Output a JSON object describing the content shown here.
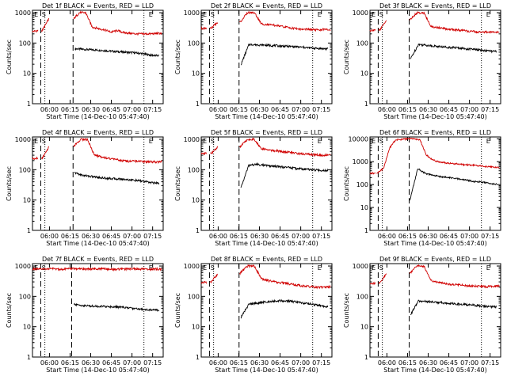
{
  "colors": {
    "events": "#000000",
    "lld": "#d00000",
    "axis": "#000000",
    "marker": "#000000"
  },
  "shared": {
    "ylabel": "Counts/sec",
    "xlabel": "Start Time (14-Dec-10 05:47:40)",
    "x_ticks": [
      "06:00",
      "06:15",
      "06:30",
      "06:45",
      "07:00",
      "07:15"
    ],
    "x_tick_minutes": [
      12.33,
      27.33,
      42.33,
      57.33,
      72.33,
      87.33
    ],
    "y_ticks": [
      "1",
      "10",
      "100",
      "1000"
    ],
    "y_ticks_big": [
      "1",
      "10",
      "100",
      "1000",
      "10000"
    ]
  },
  "chart_data": [
    {
      "type": "line",
      "title": "Det 1f BLACK = Events, RED = LLD",
      "xlim": [
        0,
        95
      ],
      "ylim": [
        1,
        1200
      ],
      "yscale": "log",
      "marker_letters": [
        "E",
        "S",
        "E"
      ],
      "markers": {
        "dashed": [
          6.0,
          29.5
        ],
        "dotted": [
          9.0,
          81.0
        ]
      },
      "series": [
        {
          "name": "BLACK = Events",
          "segments": [
            [
              31.0,
              92.0
            ]
          ],
          "y": [
            65,
            62,
            60,
            58,
            55,
            52,
            50,
            48,
            45,
            40,
            38
          ]
        },
        {
          "name": "RED = LLD",
          "segments": [
            [
              0,
              4.0
            ],
            [
              6.5,
              12.0
            ],
            [
              29.8,
              94.0
            ]
          ],
          "y": [
            240,
            260,
            600,
            1000,
            1000,
            340,
            300,
            270,
            230,
            260,
            220,
            210,
            200,
            200,
            200,
            205,
            210
          ]
        }
      ]
    },
    {
      "type": "line",
      "title": "Det 2f BLACK = Events, RED = LLD",
      "xlim": [
        0,
        95
      ],
      "ylim": [
        1,
        1200
      ],
      "yscale": "log",
      "marker_letters": [
        "E",
        "S",
        "E"
      ],
      "markers": {
        "dashed": [
          6.0,
          27.5
        ],
        "dotted": [
          9.0,
          81.0
        ]
      },
      "series": [
        {
          "name": "BLACK = Events",
          "segments": [
            [
              29.0,
              92.0
            ]
          ],
          "y": [
            20,
            90,
            88,
            85,
            83,
            80,
            78,
            75,
            72,
            68,
            66,
            64
          ]
        },
        {
          "name": "RED = LLD",
          "segments": [
            [
              0,
              4.0
            ],
            [
              6.5,
              12.0
            ],
            [
              28.0,
              94.0
            ]
          ],
          "y": [
            300,
            320,
            500,
            1000,
            1000,
            430,
            400,
            380,
            350,
            320,
            300,
            280,
            280,
            270,
            280,
            270
          ]
        }
      ]
    },
    {
      "type": "line",
      "title": "Det 3f BLACK = Events, RED = LLD",
      "xlim": [
        0,
        95
      ],
      "ylim": [
        1,
        1200
      ],
      "yscale": "log",
      "marker_letters": [
        "E",
        "S",
        "E"
      ],
      "markers": {
        "dashed": [
          6.0,
          28.5
        ],
        "dotted": [
          9.0,
          81.0
        ]
      },
      "series": [
        {
          "name": "BLACK = Events",
          "segments": [
            [
              29.5,
              92.0
            ]
          ],
          "y": [
            30,
            90,
            85,
            80,
            75,
            72,
            70,
            65,
            62,
            58,
            55,
            52
          ]
        },
        {
          "name": "RED = LLD",
          "segments": [
            [
              0,
              4.0
            ],
            [
              6.5,
              12.0
            ],
            [
              28.8,
              94.0
            ]
          ],
          "y": [
            260,
            280,
            600,
            1000,
            1000,
            350,
            320,
            300,
            280,
            270,
            250,
            240,
            230,
            230,
            225,
            230
          ]
        }
      ]
    },
    {
      "type": "line",
      "title": "Det 4f BLACK = Events, RED = LLD",
      "xlim": [
        0,
        95
      ],
      "ylim": [
        1,
        1200
      ],
      "yscale": "log",
      "marker_letters": [
        "E",
        "S",
        "E"
      ],
      "markers": {
        "dashed": [
          6.0,
          29.5
        ],
        "dotted": [
          9.0,
          81.0
        ]
      },
      "series": [
        {
          "name": "BLACK = Events",
          "segments": [
            [
              30.5,
              92.0
            ]
          ],
          "y": [
            80,
            65,
            60,
            55,
            52,
            50,
            48,
            45,
            42,
            38,
            36
          ]
        },
        {
          "name": "RED = LLD",
          "segments": [
            [
              0,
              4.0
            ],
            [
              6.5,
              12.0
            ],
            [
              29.8,
              94.0
            ]
          ],
          "y": [
            230,
            250,
            600,
            1000,
            1000,
            310,
            270,
            240,
            220,
            200,
            190,
            190,
            185,
            185,
            180,
            185
          ]
        }
      ]
    },
    {
      "type": "line",
      "title": "Det 5f BLACK = Events, RED = LLD",
      "xlim": [
        0,
        95
      ],
      "ylim": [
        1,
        1200
      ],
      "yscale": "log",
      "marker_letters": [
        "E",
        "S",
        "E"
      ],
      "markers": {
        "dashed": [
          6.0,
          27.5
        ],
        "dotted": [
          9.0,
          81.0
        ]
      },
      "series": [
        {
          "name": "BLACK = Events",
          "segments": [
            [
              28.8,
              92.0
            ]
          ],
          "y": [
            25,
            140,
            150,
            140,
            130,
            125,
            120,
            110,
            105,
            100,
            95,
            95
          ]
        },
        {
          "name": "RED = LLD",
          "segments": [
            [
              0,
              4.0
            ],
            [
              6.5,
              12.0
            ],
            [
              28.0,
              94.0
            ]
          ],
          "y": [
            330,
            350,
            600,
            1000,
            1000,
            500,
            450,
            420,
            400,
            380,
            350,
            330,
            320,
            310,
            300,
            300
          ]
        }
      ]
    },
    {
      "type": "line",
      "title": "Det 6f BLACK = Events, RED = LLD",
      "xlim": [
        0,
        95
      ],
      "ylim": [
        1,
        12000
      ],
      "yscale": "log",
      "marker_letters": [
        "E",
        "S",
        "E"
      ],
      "markers": {
        "dashed": [
          6.0,
          28.5
        ],
        "dotted": [
          9.0,
          81.0
        ]
      },
      "series": [
        {
          "name": "BLACK = Events",
          "segments": [
            [
              29.0,
              92.0
            ]
          ],
          "y": [
            20,
            500,
            300,
            250,
            220,
            200,
            180,
            160,
            140,
            130,
            115,
            105
          ]
        },
        {
          "name": "RED = LLD",
          "segments": [
            [
              0,
              4.0
            ],
            [
              5.0,
              29.0
            ],
            [
              29.0,
              94.0
            ]
          ],
          "y": [
            300,
            320,
            500,
            4000,
            9000,
            9500,
            10000,
            10000,
            9000,
            2000,
            1200,
            1000,
            900,
            850,
            800,
            750,
            720,
            700,
            650,
            600,
            580,
            560
          ]
        }
      ]
    },
    {
      "type": "line",
      "title": "Det 7f BLACK = Events, RED = LLD",
      "xlim": [
        0,
        95
      ],
      "ylim": [
        1,
        1200
      ],
      "yscale": "log",
      "marker_letters": [
        "E",
        "S",
        "E"
      ],
      "markers": {
        "dashed": [
          6.0,
          28.5
        ],
        "dotted": [
          9.0,
          81.0
        ]
      },
      "series": [
        {
          "name": "BLACK = Events",
          "segments": [
            [
              30.0,
              92.0
            ]
          ],
          "y": [
            55,
            50,
            48,
            47,
            46,
            45,
            43,
            40,
            38,
            36,
            35
          ]
        },
        {
          "name": "RED = LLD",
          "segments": [
            [
              0,
              94.0
            ]
          ],
          "y": [
            800,
            780,
            800,
            820,
            780,
            800,
            820,
            810,
            790,
            800,
            820,
            800,
            780,
            790,
            800,
            810,
            800,
            790,
            800,
            780
          ]
        }
      ]
    },
    {
      "type": "line",
      "title": "Det 8f BLACK = Events, RED = LLD",
      "xlim": [
        0,
        95
      ],
      "ylim": [
        1,
        1200
      ],
      "yscale": "log",
      "marker_letters": [
        "E",
        "S",
        "E"
      ],
      "markers": {
        "dashed": [
          6.0,
          27.5
        ],
        "dotted": [
          9.0,
          81.0
        ]
      },
      "series": [
        {
          "name": "BLACK = Events",
          "segments": [
            [
              28.8,
              92.0
            ]
          ],
          "y": [
            20,
            55,
            60,
            65,
            70,
            72,
            70,
            65,
            60,
            55,
            50,
            45
          ]
        },
        {
          "name": "RED = LLD",
          "segments": [
            [
              0,
              4.0
            ],
            [
              6.5,
              12.0
            ],
            [
              28.0,
              94.0
            ]
          ],
          "y": [
            280,
            300,
            600,
            1000,
            1000,
            380,
            330,
            300,
            280,
            260,
            240,
            220,
            210,
            200,
            200,
            210
          ]
        }
      ]
    },
    {
      "type": "line",
      "title": "Det 9f BLACK = Events, RED = LLD",
      "xlim": [
        0,
        95
      ],
      "ylim": [
        1,
        1200
      ],
      "yscale": "log",
      "marker_letters": [
        "E",
        "S",
        "E"
      ],
      "markers": {
        "dashed": [
          6.0,
          28.5
        ],
        "dotted": [
          9.0,
          81.0
        ]
      },
      "series": [
        {
          "name": "BLACK = Events",
          "segments": [
            [
              29.5,
              92.0
            ]
          ],
          "y": [
            25,
            70,
            68,
            65,
            62,
            58,
            56,
            54,
            52,
            48,
            46,
            45
          ]
        },
        {
          "name": "RED = LLD",
          "segments": [
            [
              0,
              4.0
            ],
            [
              6.5,
              12.0
            ],
            [
              28.8,
              94.0
            ]
          ],
          "y": [
            260,
            280,
            600,
            1000,
            1000,
            330,
            290,
            270,
            250,
            240,
            230,
            220,
            215,
            210,
            210,
            215
          ]
        }
      ]
    }
  ]
}
